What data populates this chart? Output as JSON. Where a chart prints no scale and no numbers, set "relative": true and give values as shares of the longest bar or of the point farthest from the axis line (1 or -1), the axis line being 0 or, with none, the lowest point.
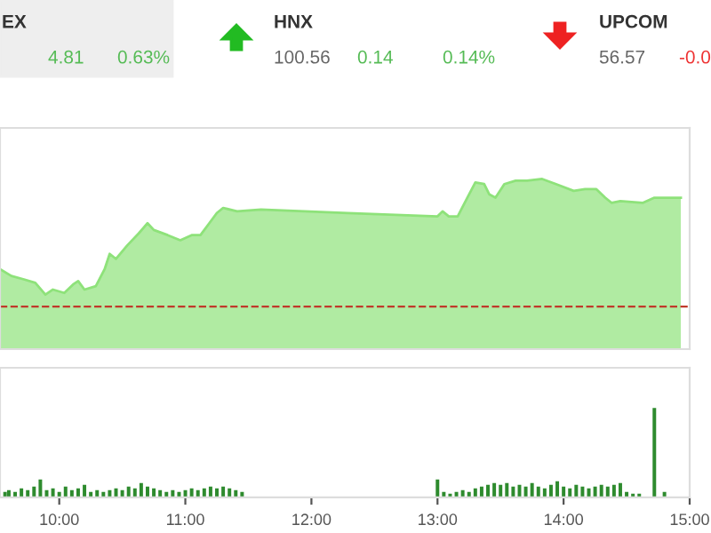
{
  "chart_data": [
    {
      "type": "area",
      "relative": true,
      "color": "#8ee27a",
      "xlim": [
        9.53,
        15.0
      ],
      "tick_labels": false,
      "annotations": [
        "EX",
        "4.81",
        "0.63%",
        "HNX",
        "100.56",
        "0.14",
        "0.14%",
        "UPCOM",
        "56.57",
        "-0.0"
      ],
      "x": [
        9.53,
        9.62,
        9.72,
        9.81,
        9.89,
        9.95,
        10.04,
        10.11,
        10.15,
        10.2,
        10.29,
        10.36,
        10.4,
        10.45,
        10.54,
        10.63,
        10.7,
        10.75,
        10.86,
        10.96,
        11.05,
        11.12,
        11.19,
        11.25,
        11.3,
        11.41,
        11.6,
        12.29,
        13.0,
        13.04,
        13.09,
        13.16,
        13.23,
        13.3,
        13.37,
        13.41,
        13.46,
        13.53,
        13.62,
        13.71,
        13.83,
        13.94,
        14.08,
        14.17,
        14.26,
        14.33,
        14.38,
        14.45,
        14.63,
        14.72,
        14.93
      ],
      "values": [
        0.47,
        0.43,
        0.41,
        0.39,
        0.32,
        0.35,
        0.33,
        0.38,
        0.4,
        0.35,
        0.37,
        0.47,
        0.56,
        0.53,
        0.61,
        0.68,
        0.74,
        0.7,
        0.67,
        0.64,
        0.67,
        0.67,
        0.74,
        0.8,
        0.83,
        0.81,
        0.82,
        0.8,
        0.78,
        0.81,
        0.78,
        0.78,
        0.88,
        0.98,
        0.97,
        0.91,
        0.89,
        0.97,
        0.99,
        0.99,
        1.0,
        0.97,
        0.93,
        0.94,
        0.94,
        0.89,
        0.86,
        0.87,
        0.86,
        0.89,
        0.89
      ],
      "ref_lines": [
        {
          "axis": "y",
          "value": 0.25,
          "color": "#c0392b",
          "line_style": "dashed"
        }
      ]
    },
    {
      "type": "bar",
      "relative": true,
      "color": "#2e8b2e",
      "xlim": [
        9.53,
        15.0
      ],
      "xticks": [
        {
          "value": 10,
          "label": "10:00"
        },
        {
          "value": 11,
          "label": "11:00"
        },
        {
          "value": 12,
          "label": "12:00"
        },
        {
          "value": 13,
          "label": "13:00"
        },
        {
          "value": 14,
          "label": "14:00"
        },
        {
          "value": 15,
          "label": "15:00"
        }
      ],
      "x": [
        9.57,
        9.6,
        9.65,
        9.7,
        9.75,
        9.8,
        9.85,
        9.9,
        9.95,
        10.0,
        10.05,
        10.1,
        10.15,
        10.2,
        10.25,
        10.3,
        10.35,
        10.4,
        10.45,
        10.5,
        10.55,
        10.6,
        10.65,
        10.7,
        10.75,
        10.8,
        10.85,
        10.9,
        10.95,
        11.0,
        11.05,
        11.1,
        11.15,
        11.2,
        11.25,
        11.3,
        11.35,
        11.4,
        11.45,
        13.0,
        13.05,
        13.1,
        13.15,
        13.2,
        13.25,
        13.3,
        13.35,
        13.4,
        13.45,
        13.5,
        13.55,
        13.6,
        13.65,
        13.7,
        13.75,
        13.8,
        13.85,
        13.9,
        13.95,
        14.0,
        14.05,
        14.1,
        14.15,
        14.2,
        14.25,
        14.3,
        14.35,
        14.4,
        14.45,
        14.5,
        14.55,
        14.6,
        14.72,
        14.8
      ],
      "values": [
        0.06,
        0.08,
        0.06,
        0.1,
        0.08,
        0.12,
        0.2,
        0.08,
        0.1,
        0.06,
        0.12,
        0.08,
        0.1,
        0.14,
        0.06,
        0.08,
        0.06,
        0.08,
        0.1,
        0.08,
        0.12,
        0.1,
        0.16,
        0.12,
        0.1,
        0.08,
        0.06,
        0.08,
        0.06,
        0.08,
        0.1,
        0.08,
        0.1,
        0.12,
        0.1,
        0.12,
        0.1,
        0.08,
        0.06,
        0.2,
        0.06,
        0.04,
        0.06,
        0.08,
        0.06,
        0.1,
        0.12,
        0.14,
        0.16,
        0.14,
        0.16,
        0.12,
        0.14,
        0.12,
        0.16,
        0.12,
        0.1,
        0.14,
        0.18,
        0.12,
        0.1,
        0.14,
        0.12,
        0.1,
        0.12,
        0.14,
        0.12,
        0.14,
        0.16,
        0.06,
        0.04,
        0.04,
        1,
        0.06
      ]
    }
  ]
}
